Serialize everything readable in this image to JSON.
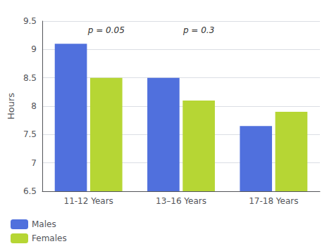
{
  "chart_data": {
    "type": "bar",
    "categories": [
      "11-12 Years",
      "13–16 Years",
      "17-18 Years"
    ],
    "series": [
      {
        "name": "Males",
        "values": [
          9.1,
          8.5,
          7.65
        ]
      },
      {
        "name": "Females",
        "values": [
          8.5,
          8.1,
          7.9
        ]
      }
    ],
    "ylabel": "Hours",
    "ylim": [
      6.5,
      9.5
    ],
    "yticks": [
      6.5,
      7,
      7.5,
      8,
      8.5,
      9,
      9.5
    ],
    "grid": true,
    "legend": "lower left",
    "annotations": [
      {
        "text": "p = 0.05",
        "category": "11-12 Years",
        "y": 9.2
      },
      {
        "text": "p = 0.3",
        "category": "13–16 Years",
        "y": 9.2
      }
    ]
  }
}
